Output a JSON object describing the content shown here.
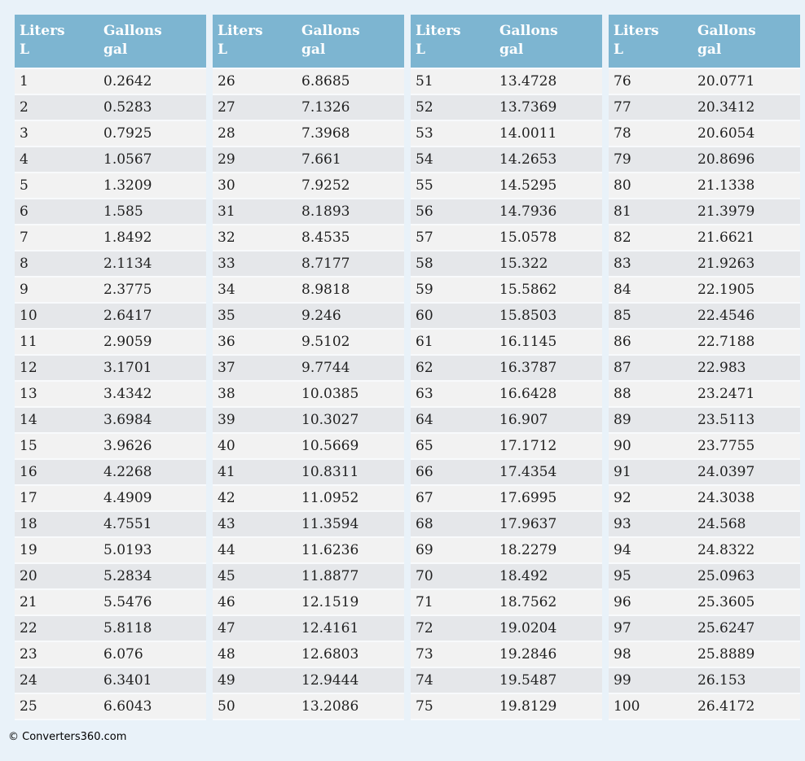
{
  "page": {
    "footer_text": "© Converters360.com"
  },
  "colors": {
    "page_background": "#e9f2f9",
    "header_background": "#7db5d1",
    "header_text": "#ffffff",
    "row_odd": "#f2f2f2",
    "row_even": "#e5e7ea",
    "cell_text": "#1f1f1f"
  },
  "header": {
    "liters_label": "Liters",
    "liters_unit": "L",
    "gallons_label": "Gallons",
    "gallons_unit": "gal"
  },
  "tables": [
    {
      "range": "1-25",
      "rows": [
        [
          "1",
          "0.2642"
        ],
        [
          "2",
          "0.5283"
        ],
        [
          "3",
          "0.7925"
        ],
        [
          "4",
          "1.0567"
        ],
        [
          "5",
          "1.3209"
        ],
        [
          "6",
          "1.585"
        ],
        [
          "7",
          "1.8492"
        ],
        [
          "8",
          "2.1134"
        ],
        [
          "9",
          "2.3775"
        ],
        [
          "10",
          "2.6417"
        ],
        [
          "11",
          "2.9059"
        ],
        [
          "12",
          "3.1701"
        ],
        [
          "13",
          "3.4342"
        ],
        [
          "14",
          "3.6984"
        ],
        [
          "15",
          "3.9626"
        ],
        [
          "16",
          "4.2268"
        ],
        [
          "17",
          "4.4909"
        ],
        [
          "18",
          "4.7551"
        ],
        [
          "19",
          "5.0193"
        ],
        [
          "20",
          "5.2834"
        ],
        [
          "21",
          "5.5476"
        ],
        [
          "22",
          "5.8118"
        ],
        [
          "23",
          "6.076"
        ],
        [
          "24",
          "6.3401"
        ],
        [
          "25",
          "6.6043"
        ]
      ]
    },
    {
      "range": "26-50",
      "rows": [
        [
          "26",
          "6.8685"
        ],
        [
          "27",
          "7.1326"
        ],
        [
          "28",
          "7.3968"
        ],
        [
          "29",
          "7.661"
        ],
        [
          "30",
          "7.9252"
        ],
        [
          "31",
          "8.1893"
        ],
        [
          "32",
          "8.4535"
        ],
        [
          "33",
          "8.7177"
        ],
        [
          "34",
          "8.9818"
        ],
        [
          "35",
          "9.246"
        ],
        [
          "36",
          "9.5102"
        ],
        [
          "37",
          "9.7744"
        ],
        [
          "38",
          "10.0385"
        ],
        [
          "39",
          "10.3027"
        ],
        [
          "40",
          "10.5669"
        ],
        [
          "41",
          "10.8311"
        ],
        [
          "42",
          "11.0952"
        ],
        [
          "43",
          "11.3594"
        ],
        [
          "44",
          "11.6236"
        ],
        [
          "45",
          "11.8877"
        ],
        [
          "46",
          "12.1519"
        ],
        [
          "47",
          "12.4161"
        ],
        [
          "48",
          "12.6803"
        ],
        [
          "49",
          "12.9444"
        ],
        [
          "50",
          "13.2086"
        ]
      ]
    },
    {
      "range": "51-75",
      "rows": [
        [
          "51",
          "13.4728"
        ],
        [
          "52",
          "13.7369"
        ],
        [
          "53",
          "14.0011"
        ],
        [
          "54",
          "14.2653"
        ],
        [
          "55",
          "14.5295"
        ],
        [
          "56",
          "14.7936"
        ],
        [
          "57",
          "15.0578"
        ],
        [
          "58",
          "15.322"
        ],
        [
          "59",
          "15.5862"
        ],
        [
          "60",
          "15.8503"
        ],
        [
          "61",
          "16.1145"
        ],
        [
          "62",
          "16.3787"
        ],
        [
          "63",
          "16.6428"
        ],
        [
          "64",
          "16.907"
        ],
        [
          "65",
          "17.1712"
        ],
        [
          "66",
          "17.4354"
        ],
        [
          "67",
          "17.6995"
        ],
        [
          "68",
          "17.9637"
        ],
        [
          "69",
          "18.2279"
        ],
        [
          "70",
          "18.492"
        ],
        [
          "71",
          "18.7562"
        ],
        [
          "72",
          "19.0204"
        ],
        [
          "73",
          "19.2846"
        ],
        [
          "74",
          "19.5487"
        ],
        [
          "75",
          "19.8129"
        ]
      ]
    },
    {
      "range": "76-100",
      "rows": [
        [
          "76",
          "20.0771"
        ],
        [
          "77",
          "20.3412"
        ],
        [
          "78",
          "20.6054"
        ],
        [
          "79",
          "20.8696"
        ],
        [
          "80",
          "21.1338"
        ],
        [
          "81",
          "21.3979"
        ],
        [
          "82",
          "21.6621"
        ],
        [
          "83",
          "21.9263"
        ],
        [
          "84",
          "22.1905"
        ],
        [
          "85",
          "22.4546"
        ],
        [
          "86",
          "22.7188"
        ],
        [
          "87",
          "22.983"
        ],
        [
          "88",
          "23.2471"
        ],
        [
          "89",
          "23.5113"
        ],
        [
          "90",
          "23.7755"
        ],
        [
          "91",
          "24.0397"
        ],
        [
          "92",
          "24.3038"
        ],
        [
          "93",
          "24.568"
        ],
        [
          "94",
          "24.8322"
        ],
        [
          "95",
          "25.0963"
        ],
        [
          "96",
          "25.3605"
        ],
        [
          "97",
          "25.6247"
        ],
        [
          "98",
          "25.8889"
        ],
        [
          "99",
          "26.153"
        ],
        [
          "100",
          "26.4172"
        ]
      ]
    }
  ]
}
